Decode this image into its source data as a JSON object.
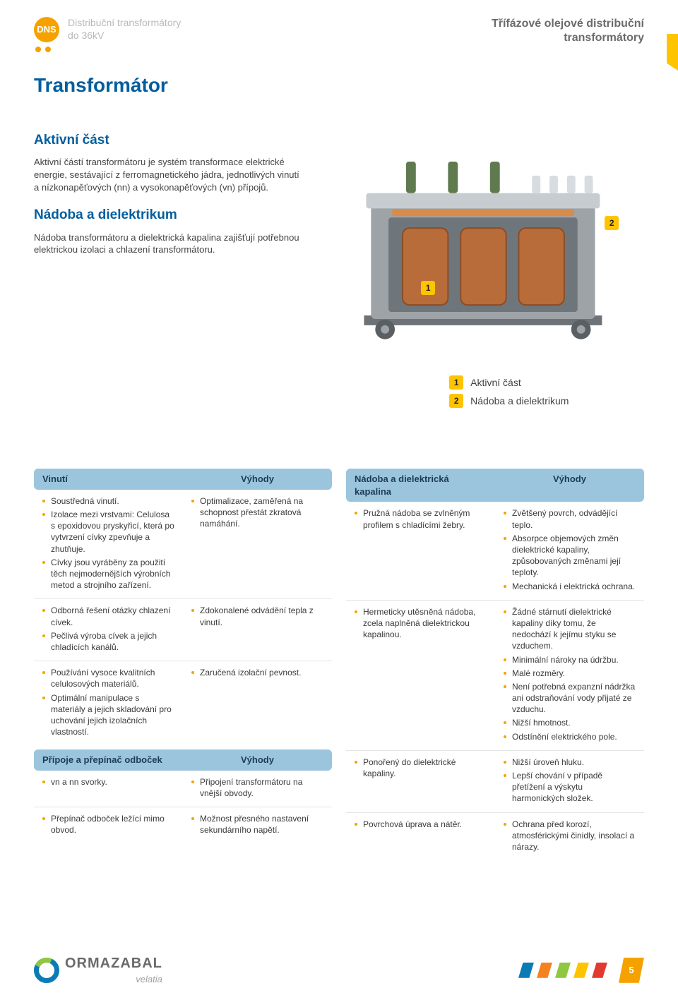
{
  "header": {
    "badge": "DNS",
    "breadcrumb_line1": "Distribuční transformátory",
    "breadcrumb_line2": "do 36kV",
    "right_line1": "Třífázové olejové distribuční",
    "right_line2": "transformátory"
  },
  "title": "Transformátor",
  "section1": {
    "heading": "Aktivní část",
    "text": "Aktivní částí transformátoru je systém transformace elektrické energie, sestávající z ferromagnetického jádra, jednotlivých vinutí a nízkonapěťových (nn) a vysokonapěťových (vn) přípojů."
  },
  "section2": {
    "heading": "Nádoba a dielektrikum",
    "text": "Nádoba transformátoru a dielektrická kapalina zajišťují potřebnou elektrickou izolaci a chlazení transformátoru."
  },
  "figure": {
    "callouts": {
      "c1": "1",
      "c2": "2"
    },
    "legend": [
      {
        "num": "1",
        "label": "Aktivní část"
      },
      {
        "num": "2",
        "label": "Nádoba a dielektrikum"
      }
    ],
    "colors": {
      "tank": "#9da3a7",
      "tank_light": "#c7ccd0",
      "coil": "#b86c3a",
      "coil_dark": "#8a4d26",
      "bushing_green": "#5f7a4f",
      "bushing_grey": "#d7dce0",
      "base": "#6c7277"
    }
  },
  "tables": {
    "left": [
      {
        "head_left": "Vinutí",
        "head_right": "Výhody",
        "rows": [
          {
            "left": [
              "Soustředná vinutí.",
              "Izolace mezi vrstvami: Celulosa s epoxidovou pryskyřicí, která po vytvrzení cívky zpevňuje a zhutňuje.",
              "Cívky jsou vyráběny za použití těch nejmodernějších výrobních metod a strojního zařízení."
            ],
            "right": [
              "Optimalizace, zaměřená na schopnost přestát zkratová namáhání."
            ]
          },
          {
            "left": [
              "Odborná řešení otázky chlazení cívek.",
              "Pečlivá výroba cívek a jejich chladících kanálů."
            ],
            "right": [
              "Zdokonalené odvádění tepla z vinutí."
            ]
          },
          {
            "left": [
              "Používání vysoce kvalitních celulosových materiálů.",
              "Optimální manipulace s materiály a jejich skladování pro uchování jejich izolačních vlastností."
            ],
            "right": [
              "Zaručená izolační pevnost."
            ]
          }
        ]
      },
      {
        "head_left": "Přípoje a přepínač odboček",
        "head_right": "Výhody",
        "rows": [
          {
            "left": [
              "vn a nn svorky."
            ],
            "right": [
              "Připojení transformátoru na vnější obvody."
            ]
          },
          {
            "left": [
              "Přepínač odboček ležící mimo obvod."
            ],
            "right": [
              "Možnost přesného nastavení sekundárního napětí."
            ]
          }
        ]
      }
    ],
    "right": [
      {
        "head_left": "Nádoba a dielektrická kapalina",
        "head_right": "Výhody",
        "rows": [
          {
            "left": [
              "Pružná nádoba se zvlněným profilem s chladícími žebry."
            ],
            "right": [
              "Zvětšený povrch, odvádějící teplo.",
              "Absorpce objemových změn dielektrické kapaliny, způsobovaných změnami její teploty.",
              "Mechanická i elektrická ochrana."
            ]
          },
          {
            "left": [
              "Hermeticky utěsněná nádoba, zcela naplněná dielektrickou kapalinou."
            ],
            "right": [
              "Žádné stárnutí dielektrické kapaliny díky tomu, že nedochází k jejímu styku se vzduchem.",
              "Minimální nároky na údržbu.",
              "Malé rozměry.",
              "Není potřebná expanzní nádržka ani odstraňování vody přijaté ze vzduchu.",
              "Nižší hmotnost.",
              "Odstínění elektrického pole."
            ]
          },
          {
            "left": [
              "Ponořený do dielektrické kapaliny."
            ],
            "right": [
              "Nižší úroveň hluku.",
              "Lepší chování v případě přetížení a výskytu harmonických složek."
            ]
          },
          {
            "left": [
              "Povrchová úprava a nátěr."
            ],
            "right": [
              "Ochrana před korozí, atmosférickými činidly, insolací a nárazy."
            ]
          }
        ]
      }
    ]
  },
  "footer": {
    "logo_name": "ORMAZABAL",
    "logo_sub": "velatia",
    "page_number": "5"
  }
}
